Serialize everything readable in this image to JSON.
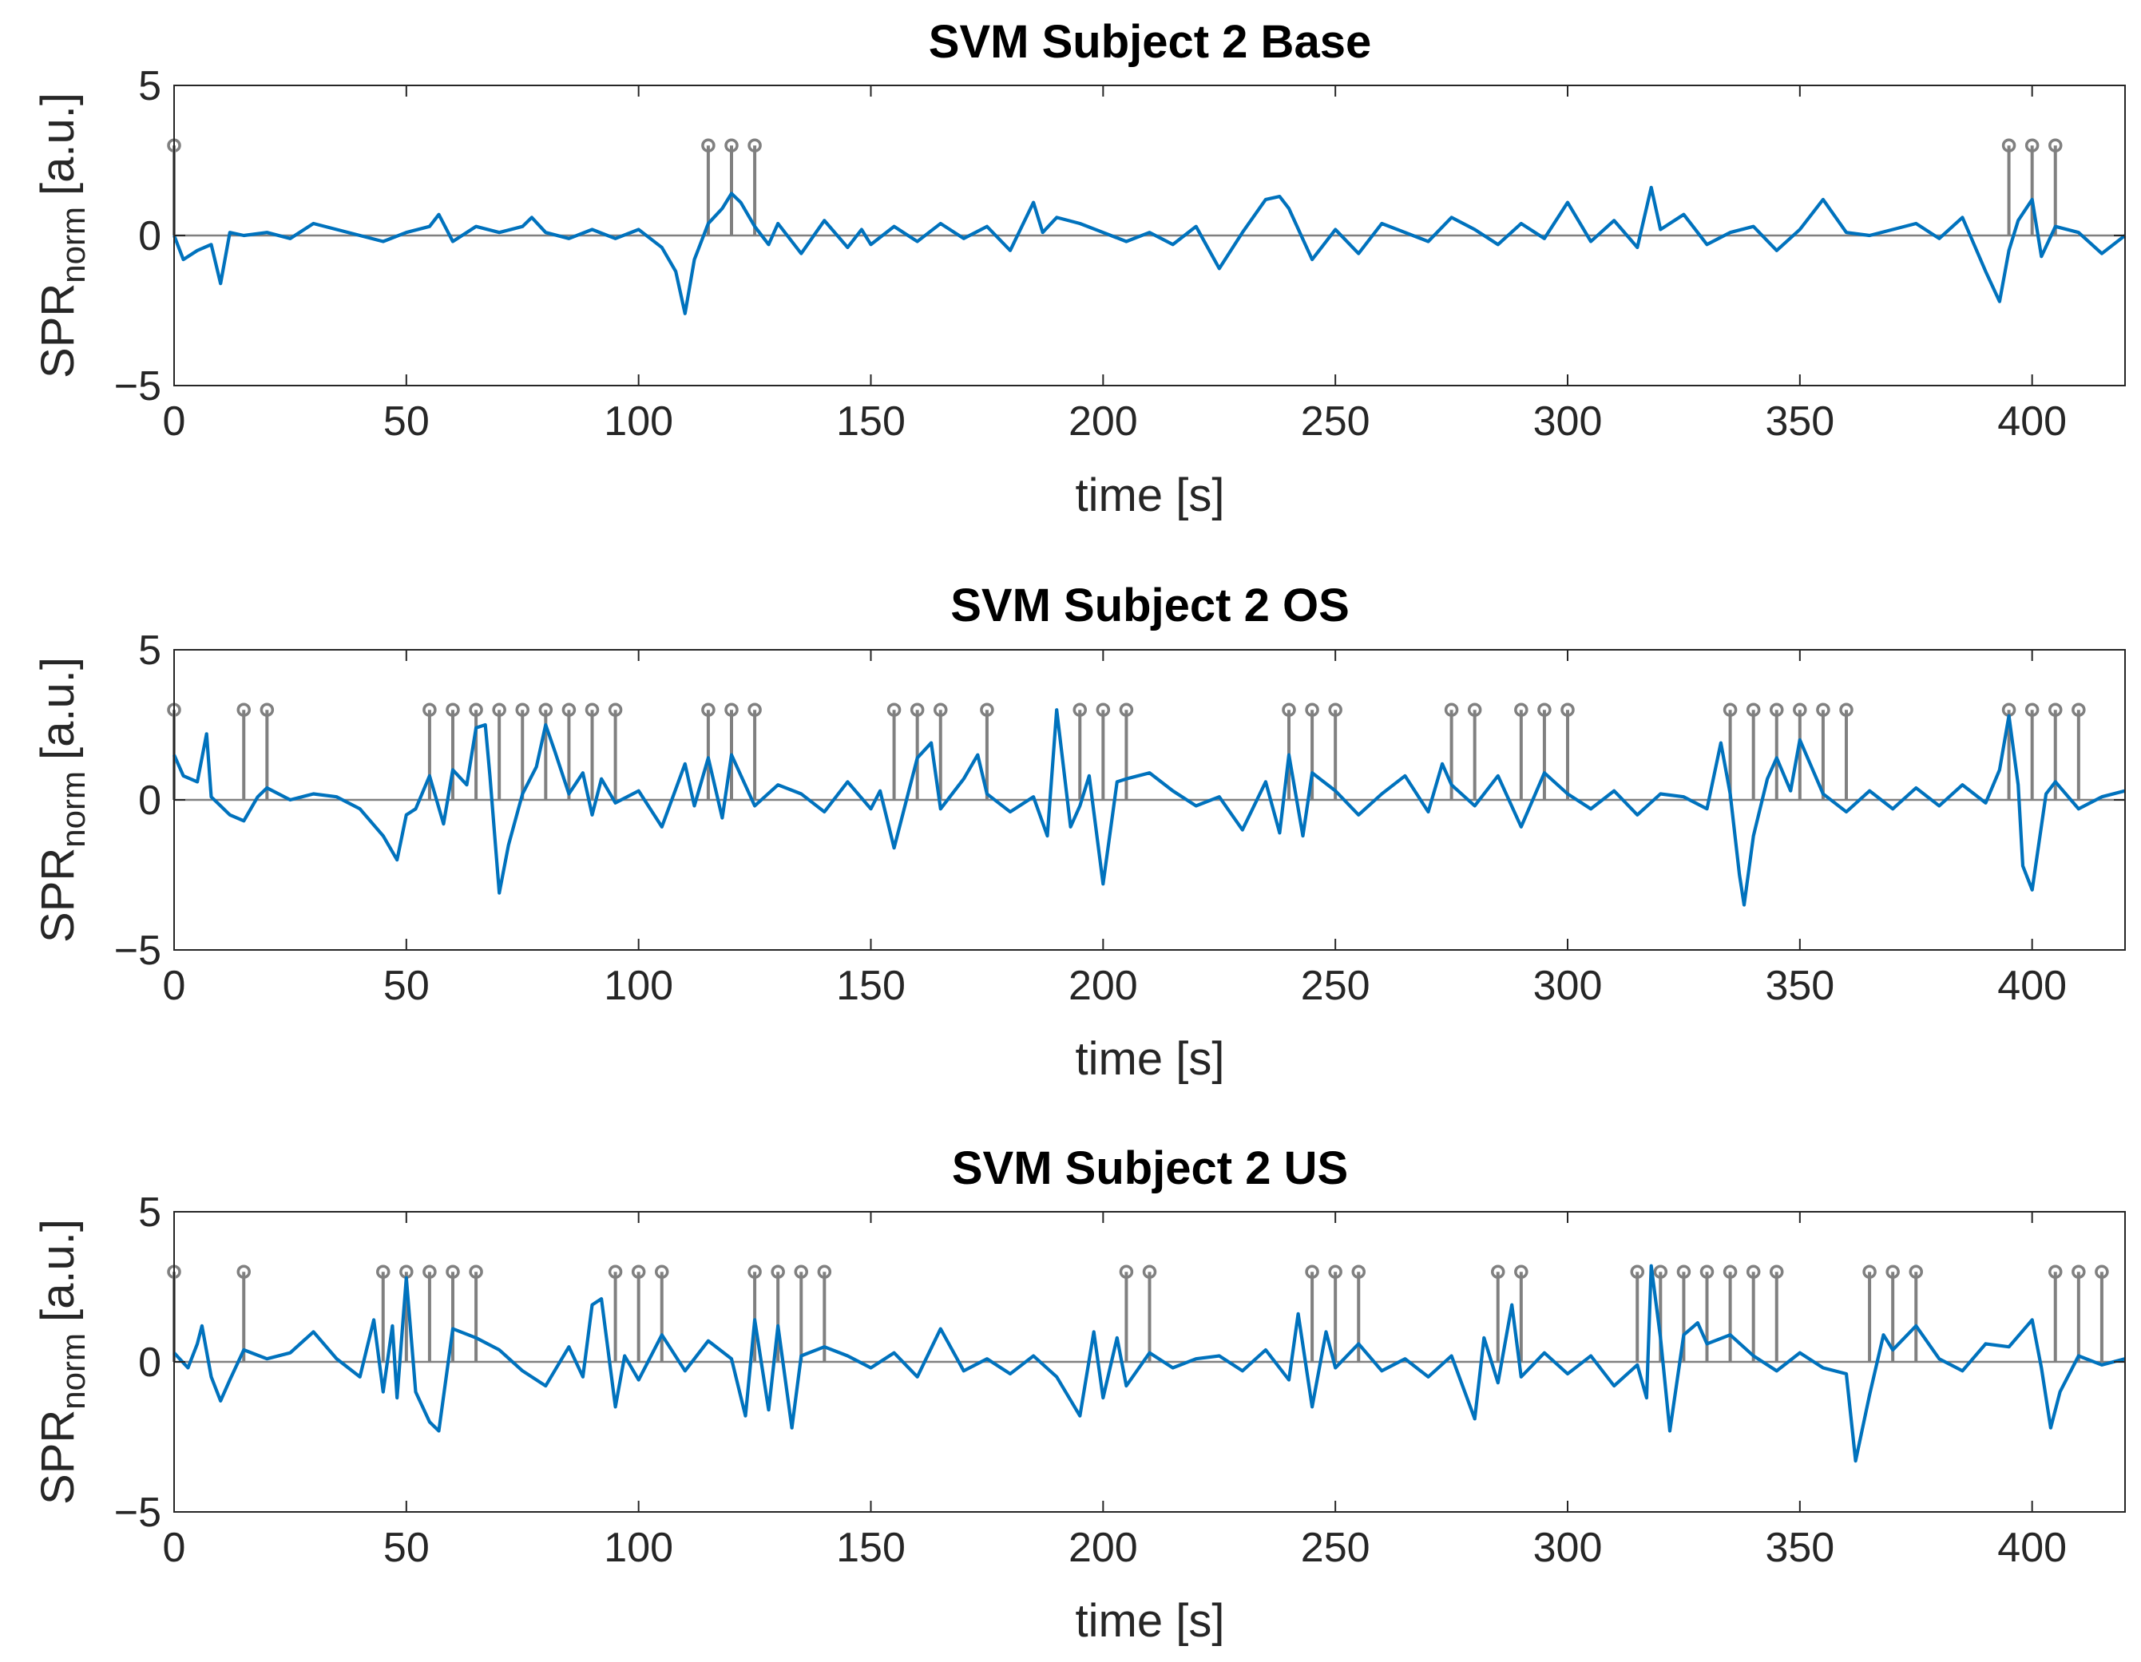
{
  "chart_data": [
    {
      "type": "line",
      "title": "SVM Subject 2 Base",
      "xlabel": "time [s]",
      "ylabel_main": "SPR",
      "ylabel_sub": "norm",
      "ylabel_suffix": "[a.u.]",
      "xlim": [
        0,
        420
      ],
      "ylim": [
        -5,
        5
      ],
      "xticks": [
        0,
        50,
        100,
        150,
        200,
        250,
        300,
        350,
        400
      ],
      "yticks": [
        5,
        0,
        -5
      ],
      "ytick_labels": [
        "5",
        "0",
        "−5"
      ],
      "stem_height": 3,
      "stems": [
        0,
        115,
        120,
        125,
        395,
        400,
        405
      ],
      "signal": {
        "name": "SPR norm",
        "x": [
          0,
          2,
          5,
          8,
          10,
          12,
          15,
          20,
          25,
          30,
          35,
          40,
          45,
          50,
          55,
          57,
          60,
          65,
          70,
          75,
          77,
          80,
          85,
          90,
          95,
          100,
          105,
          108,
          110,
          112,
          115,
          118,
          120,
          122,
          125,
          128,
          130,
          135,
          140,
          145,
          148,
          150,
          155,
          160,
          165,
          170,
          175,
          180,
          185,
          187,
          190,
          195,
          200,
          205,
          210,
          215,
          220,
          225,
          230,
          235,
          238,
          240,
          245,
          250,
          255,
          260,
          265,
          270,
          275,
          280,
          285,
          290,
          295,
          300,
          305,
          310,
          315,
          318,
          320,
          325,
          330,
          335,
          340,
          345,
          350,
          355,
          360,
          365,
          370,
          375,
          380,
          385,
          390,
          393,
          395,
          397,
          400,
          402,
          405,
          410,
          415,
          420
        ],
        "y": [
          0,
          -0.8,
          -0.5,
          -0.3,
          -1.6,
          0.1,
          0,
          0.1,
          -0.1,
          0.4,
          0.2,
          0,
          -0.2,
          0.1,
          0.3,
          0.7,
          -0.2,
          0.3,
          0.1,
          0.3,
          0.6,
          0.1,
          -0.1,
          0.2,
          -0.1,
          0.2,
          -0.4,
          -1.2,
          -2.6,
          -0.8,
          0.4,
          0.9,
          1.4,
          1.1,
          0.3,
          -0.3,
          0.4,
          -0.6,
          0.5,
          -0.4,
          0.2,
          -0.3,
          0.3,
          -0.2,
          0.4,
          -0.1,
          0.3,
          -0.5,
          1.1,
          0.1,
          0.6,
          0.4,
          0.1,
          -0.2,
          0.1,
          -0.3,
          0.3,
          -1.1,
          0.1,
          1.2,
          1.3,
          0.9,
          -0.8,
          0.2,
          -0.6,
          0.4,
          0.1,
          -0.2,
          0.6,
          0.2,
          -0.3,
          0.4,
          -0.1,
          1.1,
          -0.2,
          0.5,
          -0.4,
          1.6,
          0.2,
          0.7,
          -0.3,
          0.1,
          0.3,
          -0.5,
          0.2,
          1.2,
          0.1,
          0,
          0.2,
          0.4,
          -0.1,
          0.6,
          -1.2,
          -2.2,
          -0.5,
          0.5,
          1.2,
          -0.7,
          0.3,
          0.1,
          -0.6,
          0
        ]
      }
    },
    {
      "type": "line",
      "title": "SVM Subject 2 OS",
      "xlabel": "time [s]",
      "ylabel_main": "SPR",
      "ylabel_sub": "norm",
      "ylabel_suffix": "[a.u.]",
      "xlim": [
        0,
        420
      ],
      "ylim": [
        -5,
        5
      ],
      "xticks": [
        0,
        50,
        100,
        150,
        200,
        250,
        300,
        350,
        400
      ],
      "yticks": [
        5,
        0,
        -5
      ],
      "ytick_labels": [
        "5",
        "0",
        "−5"
      ],
      "stem_height": 3,
      "stems": [
        0,
        15,
        20,
        55,
        60,
        65,
        70,
        75,
        80,
        85,
        90,
        95,
        115,
        120,
        125,
        155,
        160,
        165,
        175,
        195,
        200,
        205,
        240,
        245,
        250,
        275,
        280,
        290,
        295,
        300,
        335,
        340,
        345,
        350,
        355,
        360,
        395,
        400,
        405,
        410
      ],
      "signal": {
        "name": "SPR norm",
        "x": [
          0,
          2,
          5,
          7,
          8,
          10,
          12,
          15,
          18,
          20,
          25,
          30,
          35,
          40,
          45,
          48,
          50,
          52,
          55,
          58,
          60,
          63,
          65,
          67,
          68,
          70,
          72,
          75,
          78,
          80,
          82,
          85,
          88,
          90,
          92,
          95,
          100,
          105,
          110,
          112,
          115,
          118,
          120,
          125,
          130,
          135,
          140,
          145,
          150,
          152,
          155,
          160,
          163,
          165,
          170,
          173,
          175,
          180,
          185,
          188,
          190,
          193,
          195,
          197,
          200,
          203,
          205,
          210,
          215,
          220,
          225,
          230,
          235,
          238,
          240,
          243,
          245,
          250,
          255,
          260,
          265,
          270,
          273,
          275,
          280,
          285,
          290,
          295,
          300,
          305,
          310,
          315,
          320,
          325,
          330,
          333,
          335,
          337,
          338,
          340,
          343,
          345,
          348,
          350,
          355,
          360,
          365,
          370,
          375,
          380,
          385,
          390,
          393,
          395,
          397,
          398,
          400,
          403,
          405,
          410,
          415,
          420
        ],
        "y": [
          1.5,
          0.8,
          0.6,
          2.2,
          0.1,
          -0.2,
          -0.5,
          -0.7,
          0.1,
          0.4,
          0,
          0.2,
          0.1,
          -0.3,
          -1.2,
          -2,
          -0.5,
          -0.3,
          0.8,
          -0.8,
          1,
          0.5,
          2.4,
          2.5,
          0.8,
          -3.1,
          -1.5,
          0.2,
          1.1,
          2.5,
          1.6,
          0.2,
          0.9,
          -0.5,
          0.7,
          -0.1,
          0.3,
          -0.9,
          1.2,
          -0.2,
          1.4,
          -0.6,
          1.5,
          -0.2,
          0.5,
          0.2,
          -0.4,
          0.6,
          -0.3,
          0.3,
          -1.6,
          1.4,
          1.9,
          -0.3,
          0.7,
          1.5,
          0.2,
          -0.4,
          0.1,
          -1.2,
          3,
          -0.9,
          -0.2,
          0.8,
          -2.8,
          0.6,
          0.7,
          0.9,
          0.3,
          -0.2,
          0.1,
          -1,
          0.6,
          -1.1,
          1.5,
          -1.2,
          0.9,
          0.3,
          -0.5,
          0.2,
          0.8,
          -0.4,
          1.2,
          0.5,
          -0.2,
          0.8,
          -0.9,
          0.9,
          0.2,
          -0.3,
          0.3,
          -0.5,
          0.2,
          0.1,
          -0.3,
          1.9,
          0.2,
          -2.5,
          -3.5,
          -1.2,
          0.7,
          1.4,
          0.3,
          2,
          0.2,
          -0.4,
          0.3,
          -0.3,
          0.4,
          -0.2,
          0.5,
          -0.1,
          1,
          2.8,
          0.5,
          -2.2,
          -3,
          0.2,
          0.6,
          -0.3,
          0.1,
          0.3
        ]
      }
    },
    {
      "type": "line",
      "title": "SVM Subject 2 US",
      "xlabel": "time [s]",
      "ylabel_main": "SPR",
      "ylabel_sub": "norm",
      "ylabel_suffix": "[a.u.]",
      "xlim": [
        0,
        420
      ],
      "ylim": [
        -5,
        5
      ],
      "xticks": [
        0,
        50,
        100,
        150,
        200,
        250,
        300,
        350,
        400
      ],
      "yticks": [
        5,
        0,
        -5
      ],
      "ytick_labels": [
        "5",
        "0",
        "−5"
      ],
      "stem_height": 3,
      "stems": [
        0,
        15,
        45,
        50,
        55,
        60,
        65,
        95,
        100,
        105,
        125,
        130,
        135,
        140,
        205,
        210,
        245,
        250,
        255,
        285,
        290,
        315,
        320,
        325,
        330,
        335,
        340,
        345,
        365,
        370,
        375,
        405,
        410,
        415
      ],
      "signal": {
        "name": "SPR norm",
        "x": [
          0,
          3,
          5,
          6,
          8,
          10,
          12,
          15,
          20,
          25,
          30,
          35,
          40,
          43,
          45,
          47,
          48,
          50,
          52,
          55,
          57,
          60,
          65,
          70,
          75,
          80,
          85,
          88,
          90,
          92,
          95,
          97,
          100,
          105,
          110,
          115,
          120,
          123,
          125,
          128,
          130,
          133,
          135,
          140,
          145,
          150,
          155,
          160,
          165,
          170,
          175,
          180,
          185,
          190,
          195,
          198,
          200,
          203,
          205,
          210,
          215,
          220,
          225,
          230,
          235,
          240,
          242,
          245,
          248,
          250,
          255,
          260,
          265,
          270,
          275,
          280,
          282,
          285,
          288,
          290,
          295,
          300,
          305,
          310,
          315,
          317,
          318,
          320,
          322,
          325,
          328,
          330,
          335,
          340,
          345,
          350,
          355,
          360,
          362,
          365,
          368,
          370,
          375,
          380,
          385,
          390,
          395,
          400,
          402,
          404,
          406,
          410,
          415,
          420
        ],
        "y": [
          0.3,
          -0.2,
          0.6,
          1.2,
          -0.5,
          -1.3,
          -0.6,
          0.4,
          0.1,
          0.3,
          1,
          0.1,
          -0.5,
          1.4,
          -1,
          1.2,
          -1.2,
          2.8,
          -1,
          -2,
          -2.3,
          1.1,
          0.8,
          0.4,
          -0.3,
          -0.8,
          0.5,
          -0.5,
          1.9,
          2.1,
          -1.5,
          0.2,
          -0.6,
          0.9,
          -0.3,
          0.7,
          0.1,
          -1.8,
          1.4,
          -1.6,
          1.2,
          -2.2,
          0.2,
          0.5,
          0.2,
          -0.2,
          0.3,
          -0.5,
          1.1,
          -0.3,
          0.1,
          -0.4,
          0.2,
          -0.5,
          -1.8,
          1,
          -1.2,
          0.8,
          -0.8,
          0.3,
          -0.2,
          0.1,
          0.2,
          -0.3,
          0.4,
          -0.6,
          1.6,
          -1.5,
          1,
          -0.2,
          0.6,
          -0.3,
          0.1,
          -0.5,
          0.2,
          -1.9,
          0.8,
          -0.7,
          1.9,
          -0.5,
          0.3,
          -0.4,
          0.2,
          -0.8,
          -0.1,
          -1.2,
          3.2,
          0.8,
          -2.3,
          0.9,
          1.3,
          0.6,
          0.9,
          0.2,
          -0.3,
          0.3,
          -0.2,
          -0.4,
          -3.3,
          -1.1,
          0.9,
          0.4,
          1.2,
          0.1,
          -0.3,
          0.6,
          0.5,
          1.4,
          -0.2,
          -2.2,
          -1,
          0.2,
          -0.1,
          0.1
        ]
      }
    }
  ]
}
